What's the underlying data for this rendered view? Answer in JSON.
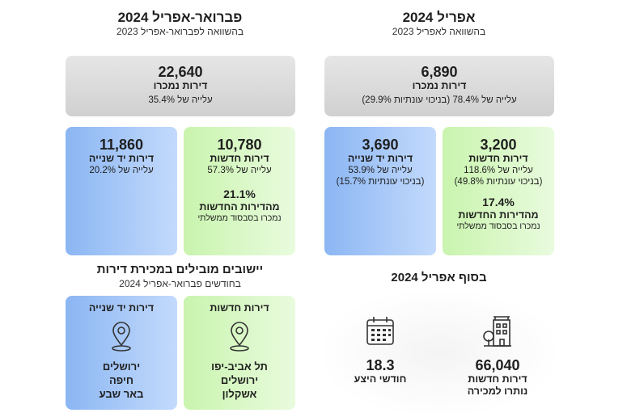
{
  "right": {
    "title": "אפריל 2024",
    "subtitle": "בהשוואה לאפריל 2023",
    "total": {
      "value": "6,890",
      "label": "דירות נמכרו",
      "change": "עלייה של 78.4% (בניכוי עונתיות 29.9%)"
    },
    "second_hand": {
      "value": "3,690",
      "label": "דירות יד שנייה",
      "change": "עלייה של 53.9%",
      "seasonal": "(בניכוי עונתיות 15.7%)"
    },
    "new": {
      "value": "3,200",
      "label": "דירות חדשות",
      "change": "עלייה של 118.6%",
      "seasonal": "(בניכוי עונתיות 49.8%)",
      "subsidy_pct": "17.4%",
      "subsidy_label": "מהדירות החדשות",
      "subsidy_note": "נמכרו בסבסוד ממשלתי"
    },
    "end_title": "בסוף אפריל 2024",
    "end": {
      "months": {
        "value": "18.3",
        "label": "חודשי היצע",
        "icon": "calendar-icon"
      },
      "unsold": {
        "value": "66,040",
        "label1": "דירות חדשות",
        "label2": "נותרו למכירה",
        "icon": "building-icon"
      }
    }
  },
  "left": {
    "title": "פברואר-אפריל 2024",
    "subtitle": "בהשוואה לפברואר-אפריל 2023",
    "total": {
      "value": "22,640",
      "label": "דירות נמכרו",
      "change": "עלייה של 35.4%"
    },
    "second_hand": {
      "value": "11,860",
      "label": "דירות יד שנייה",
      "change": "עלייה של 20.2%"
    },
    "new": {
      "value": "10,780",
      "label": "דירות חדשות",
      "change": "עלייה של 57.3%",
      "subsidy_pct": "21.1%",
      "subsidy_label": "מהדירות החדשות",
      "subsidy_note": "נמכרו בסבסוד ממשלתי"
    },
    "leading_title": "יישובים מובילים במכירת דירות",
    "leading_subtitle": "בחודשים פברואר-אפריל 2024",
    "leading": {
      "second_hand": {
        "label": "דירות יד שנייה",
        "icon": "location-pin-icon",
        "cities": [
          "ירושלים",
          "חיפה",
          "באר שבע"
        ]
      },
      "new": {
        "label": "דירות חדשות",
        "icon": "location-pin-icon",
        "cities": [
          "תל אביב-יפו",
          "ירושלים",
          "אשקלון"
        ]
      }
    }
  },
  "colors": {
    "gray": "#d9d9d9",
    "blue": "#a6c8f7",
    "green": "#d8f7c4"
  }
}
